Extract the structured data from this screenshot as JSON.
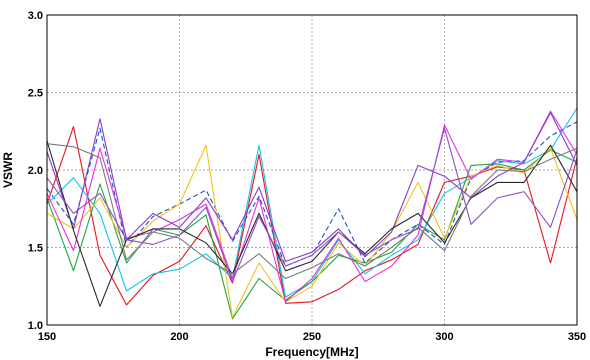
{
  "chart_data": {
    "type": "line",
    "title": "",
    "xlabel": "Frequency[MHz]",
    "ylabel": "VSWR",
    "xlim": [
      150,
      350
    ],
    "ylim": [
      1.0,
      3.0
    ],
    "xticks": [
      150,
      200,
      250,
      300,
      350
    ],
    "xtick_labels": [
      "150",
      "200",
      "250",
      "300",
      "350"
    ],
    "yticks": [
      1.0,
      1.5,
      2.0,
      2.5,
      3.0
    ],
    "ytick_labels": [
      "1.0",
      "1.5",
      "2.0",
      "2.5",
      "3.0"
    ],
    "grid": true,
    "legend": "none",
    "x": [
      150,
      160,
      170,
      180,
      190,
      200,
      210,
      220,
      230,
      240,
      250,
      260,
      270,
      280,
      290,
      300,
      310,
      320,
      330,
      340,
      350
    ],
    "series": [
      {
        "color": "#e8141e",
        "dash": "solid",
        "values": [
          1.78,
          2.28,
          1.45,
          1.13,
          1.32,
          1.41,
          1.64,
          1.27,
          2.1,
          1.14,
          1.15,
          1.23,
          1.35,
          1.42,
          1.52,
          1.92,
          1.96,
          2.02,
          2.0,
          1.4,
          2.08
        ]
      },
      {
        "color": "#1a52d4",
        "dash": "dashed",
        "values": [
          1.88,
          1.65,
          2.27,
          1.5,
          1.7,
          1.78,
          1.87,
          1.54,
          1.83,
          1.38,
          1.45,
          1.75,
          1.4,
          1.55,
          1.65,
          1.52,
          1.95,
          2.05,
          2.06,
          2.22,
          2.31
        ]
      },
      {
        "color": "#12c4ea",
        "dash": "solid",
        "values": [
          1.78,
          1.95,
          1.72,
          1.22,
          1.33,
          1.36,
          1.46,
          1.3,
          2.16,
          1.18,
          1.28,
          1.55,
          1.33,
          1.45,
          1.55,
          1.85,
          1.95,
          2.06,
          2.04,
          2.13,
          2.4
        ]
      },
      {
        "color": "#1fa640",
        "dash": "solid",
        "values": [
          1.82,
          1.35,
          1.91,
          1.4,
          1.62,
          1.58,
          1.71,
          1.04,
          1.3,
          1.16,
          1.28,
          1.45,
          1.4,
          1.47,
          1.65,
          1.55,
          2.03,
          2.04,
          2.0,
          2.13,
          2.05
        ]
      },
      {
        "color": "#f2c21a",
        "dash": "solid",
        "values": [
          1.72,
          1.62,
          1.82,
          1.5,
          1.67,
          1.78,
          2.16,
          1.05,
          1.4,
          1.15,
          1.25,
          1.53,
          1.38,
          1.6,
          1.92,
          1.56,
          1.96,
          2.03,
          1.98,
          2.14,
          1.68
        ]
      },
      {
        "color": "#e632e6",
        "dash": "solid",
        "values": [
          1.85,
          1.48,
          2.14,
          1.56,
          1.6,
          1.68,
          1.78,
          1.3,
          1.82,
          1.15,
          1.3,
          1.56,
          1.28,
          1.38,
          1.58,
          2.29,
          1.94,
          2.07,
          2.05,
          2.38,
          2.1
        ]
      },
      {
        "color": "#8b3bc8",
        "dash": "solid",
        "values": [
          2.12,
          1.62,
          2.33,
          1.55,
          1.72,
          1.63,
          1.82,
          1.55,
          1.89,
          1.41,
          1.47,
          1.62,
          1.44,
          1.6,
          2.03,
          1.96,
          1.82,
          1.96,
          2.05,
          2.37,
          2.03
        ]
      },
      {
        "color": "#2a2a2a",
        "dash": "solid",
        "values": [
          2.19,
          1.61,
          1.12,
          1.55,
          1.62,
          1.62,
          1.53,
          1.33,
          1.72,
          1.35,
          1.41,
          1.6,
          1.46,
          1.62,
          1.72,
          1.53,
          1.82,
          1.92,
          1.92,
          2.16,
          1.86
        ]
      },
      {
        "color": "#7a7a7a",
        "dash": "solid",
        "values": [
          2.17,
          2.15,
          2.08,
          1.42,
          1.6,
          1.56,
          1.43,
          1.33,
          1.46,
          1.3,
          1.37,
          1.46,
          1.38,
          1.5,
          1.63,
          1.48,
          1.83,
          2.0,
          1.99,
          2.07,
          2.14
        ]
      },
      {
        "color": "#9050c8",
        "dash": "solid",
        "values": [
          1.95,
          1.72,
          1.85,
          1.55,
          1.52,
          1.58,
          1.76,
          1.28,
          1.7,
          1.38,
          1.45,
          1.6,
          1.45,
          1.55,
          1.62,
          2.27,
          1.65,
          1.82,
          1.86,
          1.63,
          2.13
        ]
      }
    ]
  }
}
